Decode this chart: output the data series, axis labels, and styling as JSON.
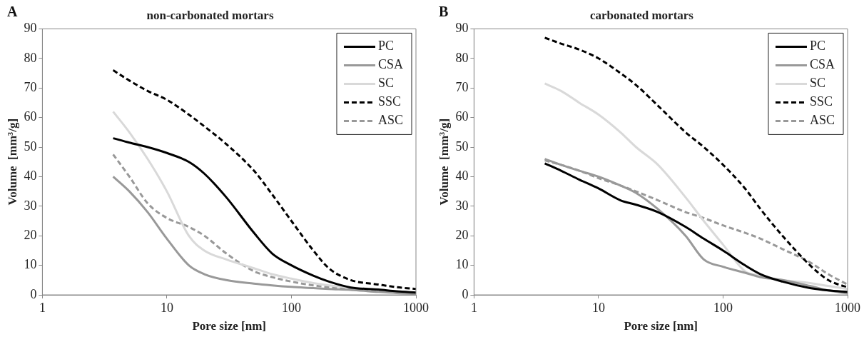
{
  "chart_data": [
    {
      "type": "line",
      "title": "non-carbonated mortars",
      "xlabel": "Pore size [nm]",
      "ylabel": "Volume  [mm³/g]",
      "annotations": [
        "A"
      ],
      "log": "x",
      "grid": false,
      "legend": "top right",
      "marker": "none",
      "xlim": [
        1,
        1000
      ],
      "xticks": [
        1,
        10,
        100,
        1000
      ],
      "ylim": [
        0,
        90
      ],
      "yticks": [
        0,
        10,
        20,
        30,
        40,
        50,
        60,
        70,
        80,
        90
      ],
      "x": [
        3.7,
        5,
        7,
        10,
        15,
        20,
        30,
        50,
        70,
        100,
        150,
        200,
        300,
        500,
        700,
        1000
      ],
      "series": [
        {
          "name": "PC",
          "color": "#000000",
          "line_style": "solid",
          "values": [
            53,
            51.5,
            50,
            48,
            45,
            41,
            33,
            21,
            14,
            10,
            6.5,
            4.5,
            2.5,
            1.8,
            1.2,
            0.8
          ]
        },
        {
          "name": "CSA",
          "color": "#999999",
          "line_style": "solid",
          "values": [
            40,
            35,
            28,
            19,
            10,
            7,
            5,
            3.8,
            3.2,
            2.7,
            2.3,
            2,
            1.7,
            1,
            0.6,
            0.3
          ]
        },
        {
          "name": "SC",
          "color": "#d9d9d9",
          "line_style": "solid",
          "values": [
            62,
            55,
            46,
            35,
            20,
            15,
            12,
            9,
            7,
            5.5,
            4,
            3.2,
            2.5,
            1.8,
            1.2,
            0.8
          ]
        },
        {
          "name": "SSC",
          "color": "#000000",
          "line_style": "dashed",
          "values": [
            76,
            72.5,
            69,
            66,
            61,
            57,
            51,
            42,
            34,
            25,
            15,
            9,
            5,
            3.5,
            2.6,
            2
          ]
        },
        {
          "name": "ASC",
          "color": "#999999",
          "line_style": "dashed",
          "values": [
            47.5,
            40,
            31,
            26,
            23,
            20,
            14,
            8,
            6,
            4.5,
            3.2,
            2.6,
            1.8,
            1.2,
            0.9,
            0.6
          ]
        }
      ]
    },
    {
      "type": "line",
      "title": "carbonated mortars",
      "xlabel": "Pore size [nm]",
      "ylabel": "Volume  [mm³/g]",
      "annotations": [
        "B"
      ],
      "log": "x",
      "grid": false,
      "legend": "top right",
      "marker": "none",
      "xlim": [
        1,
        1000
      ],
      "xticks": [
        1,
        10,
        100,
        1000
      ],
      "ylim": [
        0,
        90
      ],
      "yticks": [
        0,
        10,
        20,
        30,
        40,
        50,
        60,
        70,
        80,
        90
      ],
      "x": [
        3.7,
        5,
        7,
        10,
        15,
        20,
        30,
        50,
        70,
        100,
        150,
        200,
        300,
        500,
        700,
        1000
      ],
      "series": [
        {
          "name": "PC",
          "color": "#000000",
          "line_style": "solid",
          "values": [
            44.5,
            42,
            39,
            36,
            32,
            30.5,
            28,
            23,
            19,
            15,
            10,
            7,
            4.5,
            2.3,
            1.5,
            1
          ]
        },
        {
          "name": "CSA",
          "color": "#999999",
          "line_style": "solid",
          "values": [
            46,
            44,
            42,
            40,
            37,
            34.5,
            29,
            20,
            12,
            9.5,
            7.5,
            6,
            5,
            3,
            1.5,
            0.5
          ]
        },
        {
          "name": "SC",
          "color": "#d9d9d9",
          "line_style": "solid",
          "values": [
            71.5,
            69,
            65,
            61,
            55,
            50,
            44,
            33,
            25,
            17,
            8,
            6.5,
            5,
            4,
            3,
            2
          ]
        },
        {
          "name": "SSC",
          "color": "#000000",
          "line_style": "dashed",
          "values": [
            87,
            85,
            83,
            80,
            75,
            71,
            64,
            55,
            50,
            44,
            36,
            29,
            20,
            10,
            5,
            2.5
          ]
        },
        {
          "name": "ASC",
          "color": "#999999",
          "line_style": "dashed",
          "values": [
            45.5,
            44,
            42,
            39.5,
            37,
            35,
            32,
            28,
            26,
            23.5,
            21,
            19,
            15.5,
            11,
            7,
            3.5
          ]
        }
      ]
    }
  ]
}
